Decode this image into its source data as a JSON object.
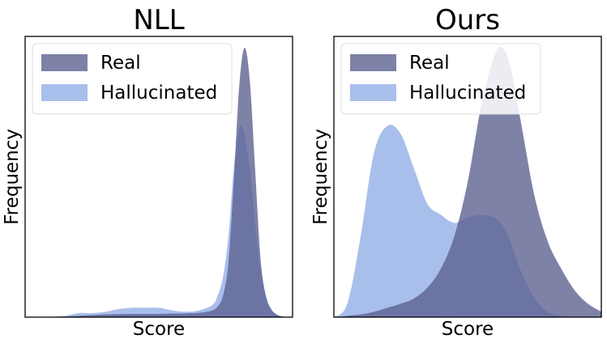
{
  "chart_data": [
    {
      "type": "area",
      "title": "NLL",
      "xlabel": "Score",
      "ylabel": "Frequency",
      "x_ticks": "none",
      "y_ticks": "none",
      "legend_position": "top-left",
      "grid": false,
      "x_range": [
        0,
        1
      ],
      "y_range": [
        0,
        1
      ],
      "series": [
        {
          "name": "Real",
          "color": "#5a5f8e",
          "opacity": 0.78,
          "x": [
            0.1,
            0.2,
            0.3,
            0.4,
            0.5,
            0.55,
            0.6,
            0.65,
            0.68,
            0.7,
            0.72,
            0.74,
            0.76,
            0.78,
            0.8,
            0.82,
            0.84,
            0.86,
            0.88,
            0.9,
            0.92,
            0.94,
            0.96,
            0.98
          ],
          "y": [
            0.0,
            0.005,
            0.01,
            0.012,
            0.012,
            0.013,
            0.014,
            0.016,
            0.02,
            0.025,
            0.04,
            0.08,
            0.2,
            0.5,
            0.85,
            1.0,
            0.88,
            0.55,
            0.22,
            0.08,
            0.03,
            0.01,
            0.003,
            0.0
          ]
        },
        {
          "name": "Hallucinated",
          "color": "#7b9de0",
          "opacity": 0.65,
          "x": [
            0.1,
            0.15,
            0.2,
            0.25,
            0.3,
            0.35,
            0.4,
            0.45,
            0.5,
            0.55,
            0.6,
            0.65,
            0.7,
            0.72,
            0.74,
            0.76,
            0.78,
            0.8,
            0.82,
            0.84,
            0.86,
            0.88,
            0.9,
            0.92,
            0.94,
            0.96,
            0.98
          ],
          "y": [
            0.002,
            0.005,
            0.015,
            0.015,
            0.02,
            0.03,
            0.035,
            0.035,
            0.035,
            0.025,
            0.02,
            0.025,
            0.045,
            0.08,
            0.15,
            0.3,
            0.55,
            0.7,
            0.68,
            0.55,
            0.35,
            0.18,
            0.08,
            0.03,
            0.01,
            0.003,
            0.0
          ]
        }
      ]
    },
    {
      "type": "area",
      "title": "Ours",
      "xlabel": "Score",
      "ylabel": "Frequency",
      "x_ticks": "none",
      "y_ticks": "none",
      "legend_position": "top-left",
      "grid": false,
      "x_range": [
        0,
        1
      ],
      "y_range": [
        0,
        1
      ],
      "series": [
        {
          "name": "Real",
          "color": "#5a5f8e",
          "opacity": 0.78,
          "x": [
            0.0,
            0.05,
            0.1,
            0.15,
            0.2,
            0.25,
            0.3,
            0.35,
            0.4,
            0.45,
            0.5,
            0.55,
            0.6,
            0.63,
            0.66,
            0.7,
            0.75,
            0.8,
            0.85,
            0.9,
            0.95,
            1.0
          ],
          "y": [
            0.0,
            0.005,
            0.01,
            0.02,
            0.035,
            0.05,
            0.07,
            0.11,
            0.18,
            0.3,
            0.5,
            0.78,
            0.97,
            1.0,
            0.93,
            0.72,
            0.45,
            0.28,
            0.18,
            0.1,
            0.05,
            0.02
          ]
        },
        {
          "name": "Hallucinated",
          "color": "#7b9de0",
          "opacity": 0.65,
          "x": [
            0.0,
            0.05,
            0.1,
            0.15,
            0.2,
            0.25,
            0.3,
            0.35,
            0.4,
            0.45,
            0.5,
            0.55,
            0.6,
            0.63,
            0.66,
            0.7,
            0.75,
            0.8,
            0.85,
            0.9
          ],
          "y": [
            0.0,
            0.05,
            0.3,
            0.61,
            0.71,
            0.68,
            0.55,
            0.42,
            0.38,
            0.35,
            0.37,
            0.38,
            0.37,
            0.34,
            0.28,
            0.17,
            0.07,
            0.02,
            0.005,
            0.0
          ]
        }
      ]
    }
  ]
}
